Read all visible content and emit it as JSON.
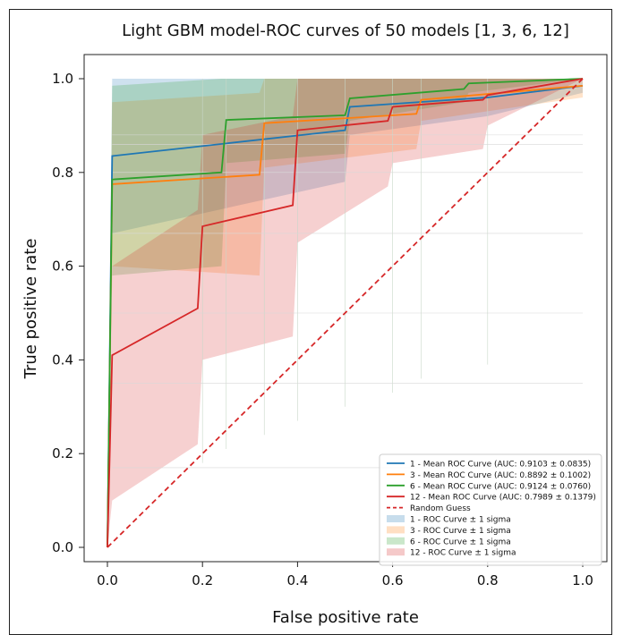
{
  "chart_data": {
    "type": "line",
    "title": "Light GBM model-ROC curves of 50 models [1, 3, 6, 12]",
    "xlabel": "False positive rate",
    "ylabel": "True positive rate",
    "xlim": [
      0.0,
      1.0
    ],
    "ylim": [
      0.0,
      1.0
    ],
    "xticks": [
      "0.0",
      "0.2",
      "0.4",
      "0.6",
      "0.8",
      "1.0"
    ],
    "yticks": [
      "0.0",
      "0.2",
      "0.4",
      "0.6",
      "0.8",
      "1.0"
    ],
    "grid": false,
    "legend_position": "lower-right",
    "series": [
      {
        "name": "1 - Mean ROC Curve (AUC: 0.9103 ± 0.0835)",
        "color": "#1f77b4",
        "x": [
          0.0,
          0.01,
          0.5,
          0.51,
          0.8,
          1.0
        ],
        "y": [
          0.0,
          0.835,
          0.89,
          0.94,
          0.96,
          0.985
        ],
        "band_upper": [
          0.0,
          1.0,
          1.0,
          1.0,
          1.0,
          1.0
        ],
        "band_lower": [
          0.0,
          0.67,
          0.78,
          0.88,
          0.92,
          0.97
        ]
      },
      {
        "name": "3 - Mean ROC Curve (AUC: 0.8892 ± 0.1002)",
        "color": "#ff7f0e",
        "x": [
          0.0,
          0.01,
          0.32,
          0.33,
          0.65,
          0.66,
          1.0
        ],
        "y": [
          0.0,
          0.775,
          0.795,
          0.905,
          0.925,
          0.955,
          0.985
        ],
        "band_upper": [
          0.0,
          0.95,
          0.97,
          1.0,
          1.0,
          1.0,
          1.0
        ],
        "band_lower": [
          0.0,
          0.6,
          0.58,
          0.81,
          0.85,
          0.91,
          0.96
        ]
      },
      {
        "name": "6 - Mean ROC Curve (AUC: 0.9124 ± 0.0760)",
        "color": "#2ca02c",
        "x": [
          0.0,
          0.01,
          0.24,
          0.25,
          0.5,
          0.51,
          0.75,
          0.76,
          1.0
        ],
        "y": [
          0.0,
          0.785,
          0.8,
          0.912,
          0.922,
          0.958,
          0.978,
          0.99,
          1.0
        ],
        "band_upper": [
          0.0,
          0.985,
          1.0,
          1.0,
          1.0,
          1.0,
          1.0,
          1.0,
          1.0
        ],
        "band_lower": [
          0.0,
          0.58,
          0.6,
          0.82,
          0.84,
          0.91,
          0.95,
          0.97,
          1.0
        ]
      },
      {
        "name": "12 - Mean ROC Curve (AUC: 0.7989 ± 0.1379)",
        "color": "#d62728",
        "x": [
          0.0,
          0.01,
          0.19,
          0.2,
          0.39,
          0.4,
          0.59,
          0.6,
          0.79,
          0.8,
          1.0
        ],
        "y": [
          0.0,
          0.41,
          0.51,
          0.685,
          0.73,
          0.89,
          0.91,
          0.94,
          0.955,
          0.965,
          1.0
        ],
        "band_upper": [
          0.0,
          0.6,
          0.72,
          0.88,
          0.92,
          1.0,
          1.0,
          1.0,
          1.0,
          1.0,
          1.0
        ],
        "band_lower": [
          0.0,
          0.1,
          0.22,
          0.4,
          0.45,
          0.65,
          0.77,
          0.82,
          0.85,
          0.9,
          1.0
        ]
      },
      {
        "name": "Random Guess",
        "color": "#d62728",
        "dashed": true,
        "x": [
          0.0,
          1.0
        ],
        "y": [
          0.0,
          1.0
        ]
      }
    ],
    "band_legend": [
      {
        "name": "1 - ROC Curve ± 1 sigma",
        "color": "#1f77b4"
      },
      {
        "name": "3 - ROC Curve ± 1 sigma",
        "color": "#ff7f0e"
      },
      {
        "name": "6 - ROC Curve ± 1 sigma",
        "color": "#2ca02c"
      },
      {
        "name": "12 - ROC Curve ± 1 sigma",
        "color": "#d62728"
      }
    ]
  }
}
